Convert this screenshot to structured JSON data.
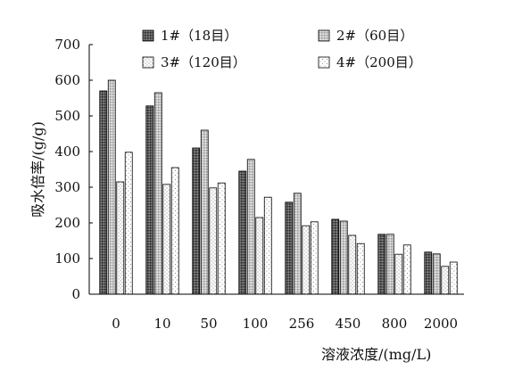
{
  "chart_data": {
    "type": "bar",
    "title": "",
    "xlabel": "溶液浓度/(mg/L)",
    "ylabel": "吸水倍率/(g/g)",
    "categories": [
      "0",
      "10",
      "50",
      "100",
      "256",
      "450",
      "800",
      "2000"
    ],
    "ylim": [
      0,
      700
    ],
    "yticks": [
      0,
      100,
      200,
      300,
      400,
      500,
      600,
      700
    ],
    "grid": false,
    "legend_position": "top",
    "series": [
      {
        "name": "1#（18目）",
        "pattern": "dense-dark",
        "values": [
          570,
          528,
          410,
          345,
          258,
          210,
          168,
          118
        ]
      },
      {
        "name": "2#（60目）",
        "pattern": "light-grey",
        "values": [
          600,
          565,
          460,
          378,
          283,
          205,
          168,
          113
        ]
      },
      {
        "name": "3#（120目）",
        "pattern": "dotted-white",
        "values": [
          315,
          308,
          298,
          215,
          192,
          165,
          112,
          78
        ]
      },
      {
        "name": "4#（200目）",
        "pattern": "sparse-white",
        "values": [
          398,
          355,
          312,
          272,
          203,
          142,
          138,
          90
        ]
      }
    ]
  }
}
